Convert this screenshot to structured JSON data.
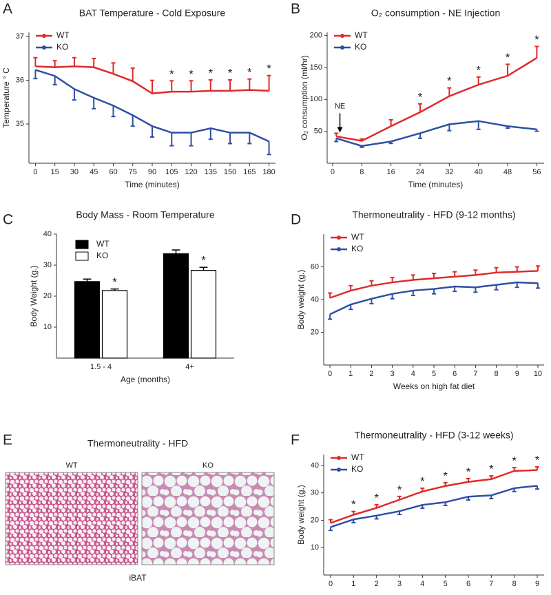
{
  "chart_data": [
    {
      "type": "line",
      "panel": "A",
      "title": "BAT Temperature - Cold Exposure",
      "xlabel": "Time (minutes)",
      "ylabel": "Temperature ° C",
      "x": [
        0,
        15,
        30,
        45,
        60,
        75,
        90,
        105,
        120,
        135,
        150,
        165,
        180
      ],
      "xlim": [
        -5,
        185
      ],
      "xticks": [
        0,
        15,
        30,
        45,
        60,
        75,
        90,
        105,
        120,
        135,
        150,
        165,
        180
      ],
      "ylim": [
        34.1,
        37.1
      ],
      "yticks": [
        35,
        36,
        37
      ],
      "legend": "upper left",
      "series": [
        {
          "name": "WT",
          "color": "#e02a2a",
          "error_side": "up",
          "values": [
            36.32,
            36.3,
            36.32,
            36.3,
            36.15,
            35.98,
            35.7,
            35.74,
            35.74,
            35.76,
            35.76,
            35.78,
            35.76
          ],
          "errors": [
            0.2,
            0.15,
            0.2,
            0.2,
            0.25,
            0.3,
            0.3,
            0.25,
            0.25,
            0.25,
            0.25,
            0.25,
            0.35
          ]
        },
        {
          "name": "KO",
          "color": "#2e4fa3",
          "error_side": "down",
          "values": [
            36.24,
            36.1,
            35.8,
            35.6,
            35.42,
            35.2,
            34.95,
            34.8,
            34.8,
            34.9,
            34.8,
            34.8,
            34.6
          ],
          "errors": [
            0.2,
            0.2,
            0.25,
            0.25,
            0.25,
            0.25,
            0.25,
            0.3,
            0.3,
            0.25,
            0.25,
            0.25,
            0.3
          ]
        }
      ],
      "significance_label": "*",
      "significant": [
        105,
        120,
        135,
        150,
        165,
        180
      ]
    },
    {
      "type": "line",
      "panel": "B",
      "title": "O₂ consumption - NE Injection",
      "xlabel": "Time (minutes)",
      "ylabel": "O₂ consumption (ml/hr)",
      "x": [
        1,
        8,
        16,
        24,
        32,
        40,
        48,
        56
      ],
      "xlim": [
        -1.5,
        58
      ],
      "xticks": [
        0,
        8,
        16,
        24,
        32,
        40,
        48,
        56
      ],
      "ylim": [
        0,
        205
      ],
      "yticks": [
        50,
        100,
        150,
        200
      ],
      "legend": "upper left",
      "series": [
        {
          "name": "WT",
          "color": "#e02a2a",
          "error_side": "up",
          "values": [
            42,
            35,
            58,
            80,
            105,
            123,
            137,
            165
          ],
          "errors": [
            5,
            3,
            10,
            13,
            13,
            12,
            18,
            18
          ]
        },
        {
          "name": "KO",
          "color": "#2e4fa3",
          "error_side": "down",
          "values": [
            39,
            27,
            34,
            47,
            61,
            66,
            58,
            53
          ],
          "errors": [
            5,
            2,
            3,
            8,
            10,
            13,
            3,
            3
          ]
        }
      ],
      "significance_label": "*",
      "significant": [
        24,
        32,
        40,
        48,
        56
      ],
      "annotations": [
        {
          "text": "NE",
          "x": 2,
          "y": 48
        }
      ]
    },
    {
      "type": "bar",
      "panel": "C",
      "title": "Body Mass - Room Temperature",
      "xlabel": "Age (months)",
      "ylabel": "Body Weight (g.)",
      "categories": [
        "1.5 - 4",
        "4+"
      ],
      "ylim": [
        0,
        40
      ],
      "yticks": [
        10,
        20,
        30,
        40
      ],
      "legend": "upper left",
      "series": [
        {
          "name": "WT",
          "color": "#000000",
          "values": [
            24.7,
            33.7
          ],
          "errors": [
            0.8,
            1.2
          ]
        },
        {
          "name": "KO",
          "color": "#ffffff",
          "values": [
            21.8,
            28.3
          ],
          "errors": [
            0.5,
            1.0
          ]
        }
      ],
      "significance_label": "*",
      "significant": [
        "1.5 - 4",
        "4+"
      ]
    },
    {
      "type": "line",
      "panel": "D",
      "title": "Thermoneutrality - HFD  (9-12 months)",
      "xlabel": "Weeks on high fat diet",
      "ylabel": "Body weight (g.)",
      "x": [
        0,
        1,
        2,
        3,
        4,
        5,
        6,
        7,
        8,
        9,
        10
      ],
      "xlim": [
        -0.3,
        10.3
      ],
      "xticks": [
        0,
        1,
        2,
        3,
        4,
        5,
        6,
        7,
        8,
        9,
        10
      ],
      "ylim": [
        0,
        80
      ],
      "yticks": [
        20,
        40,
        60
      ],
      "legend": "upper left",
      "series": [
        {
          "name": "WT",
          "color": "#e02a2a",
          "error_side": "up",
          "values": [
            41,
            45.5,
            48.5,
            50.5,
            52,
            53,
            54,
            55,
            56.5,
            57,
            57.5
          ],
          "errors": [
            3,
            3,
            3,
            3,
            3,
            3,
            3,
            3,
            3,
            3,
            3
          ]
        },
        {
          "name": "KO",
          "color": "#2e4fa3",
          "error_side": "down",
          "values": [
            31,
            37,
            40.5,
            43.5,
            45.5,
            46.5,
            48,
            47.5,
            49,
            50.5,
            50
          ],
          "errors": [
            3,
            3,
            3,
            3,
            3,
            3,
            3,
            3,
            3,
            3,
            3
          ]
        }
      ]
    },
    {
      "type": "line",
      "panel": "F",
      "title": "Thermoneutrality - HFD  (3-12 weeks)",
      "xlabel": "Weeks on high fat diet",
      "ylabel": "Body weight (g.)",
      "x": [
        0,
        1,
        2,
        3,
        4,
        5,
        6,
        7,
        8,
        9
      ],
      "xlim": [
        -0.3,
        9.3
      ],
      "xticks": [
        0,
        1,
        2,
        3,
        4,
        5,
        6,
        7,
        8,
        9
      ],
      "ylim": [
        0,
        44
      ],
      "yticks": [
        10,
        20,
        30,
        40
      ],
      "legend": "upper left",
      "series": [
        {
          "name": "WT",
          "color": "#e02a2a",
          "error_side": "up",
          "values": [
            19,
            22,
            24.5,
            27.5,
            30.5,
            32.5,
            34,
            35,
            38,
            38.3
          ],
          "errors": [
            1.2,
            1.2,
            1.2,
            1.2,
            1.2,
            1.2,
            1.2,
            1.2,
            1.2,
            1.2
          ]
        },
        {
          "name": "KO",
          "color": "#2e4fa3",
          "error_side": "down",
          "values": [
            17.5,
            20.3,
            21.7,
            23.3,
            25.6,
            26.6,
            28.6,
            29.1,
            31.7,
            32.6
          ],
          "errors": [
            1.2,
            1.2,
            1.2,
            1.2,
            1.2,
            1.2,
            1.2,
            1.2,
            1.2,
            1.2
          ]
        }
      ],
      "significance_label": "*",
      "significant": [
        1,
        2,
        3,
        4,
        5,
        6,
        7,
        8,
        9
      ]
    }
  ],
  "image_panel": {
    "panel": "E",
    "title": "Thermoneutrality - HFD",
    "left_label": "WT",
    "right_label": "KO",
    "caption": "iBAT"
  }
}
